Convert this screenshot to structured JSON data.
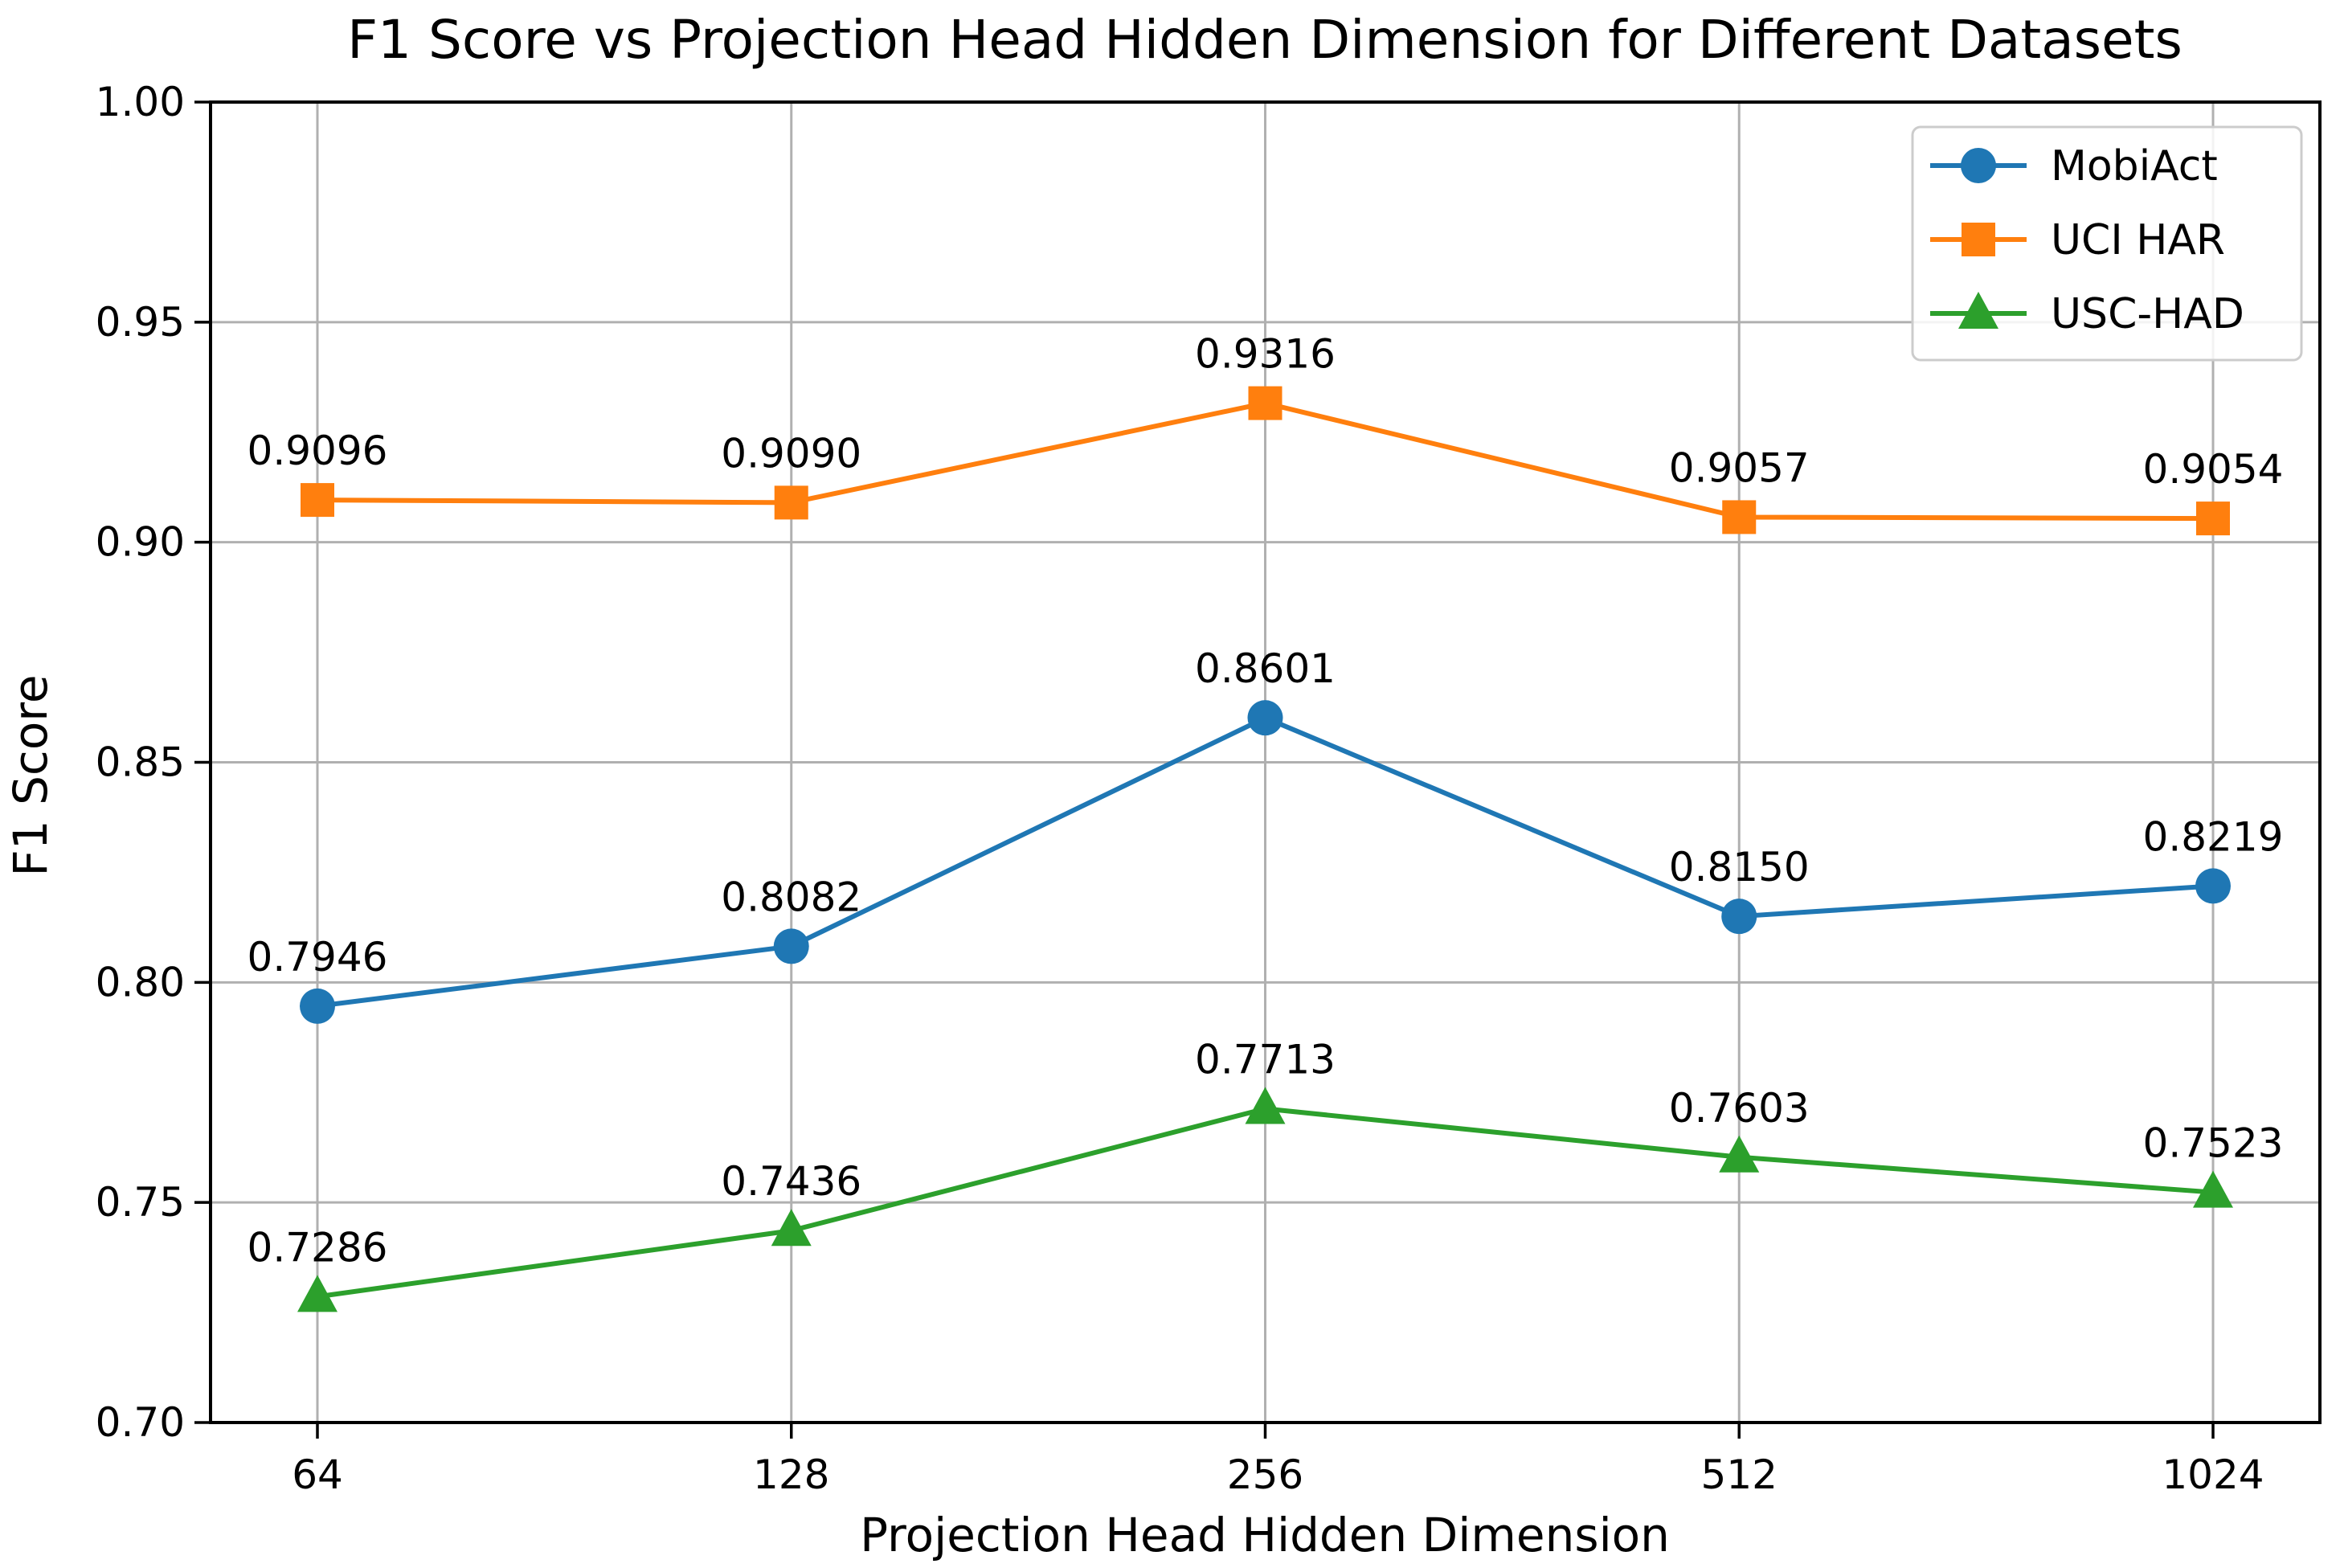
{
  "chart_data": {
    "type": "line",
    "title": "F1 Score vs Projection Head Hidden Dimension for Different Datasets",
    "xlabel": "Projection Head Hidden Dimension",
    "ylabel": "F1 Score",
    "categories": [
      "64",
      "128",
      "256",
      "512",
      "1024"
    ],
    "y_ticks": [
      "0.70",
      "0.75",
      "0.80",
      "0.85",
      "0.90",
      "0.95",
      "1.00"
    ],
    "ylim": [
      0.7,
      1.0
    ],
    "grid": true,
    "legend_position": "upper right",
    "colors": {
      "mobiact": "#1f77b4",
      "uci_har": "#ff7f0e",
      "usc_had": "#2ca02c",
      "grid": "#b0b0b0",
      "spine": "#000000",
      "legend_border": "#cccccc"
    },
    "series": [
      {
        "name": "MobiAct",
        "marker": "circle",
        "color": "#1f77b4",
        "values": [
          0.7946,
          0.8082,
          0.8601,
          0.815,
          0.8219
        ],
        "labels": [
          "0.7946",
          "0.8082",
          "0.8601",
          "0.8150",
          "0.8219"
        ]
      },
      {
        "name": "UCI HAR",
        "marker": "square",
        "color": "#ff7f0e",
        "values": [
          0.9096,
          0.909,
          0.9316,
          0.9057,
          0.9054
        ],
        "labels": [
          "0.9096",
          "0.9090",
          "0.9316",
          "0.9057",
          "0.9054"
        ]
      },
      {
        "name": "USC-HAD",
        "marker": "triangle",
        "color": "#2ca02c",
        "values": [
          0.7286,
          0.7436,
          0.7713,
          0.7603,
          0.7523
        ],
        "labels": [
          "0.7286",
          "0.7436",
          "0.7713",
          "0.7603",
          "0.7523"
        ]
      }
    ]
  }
}
